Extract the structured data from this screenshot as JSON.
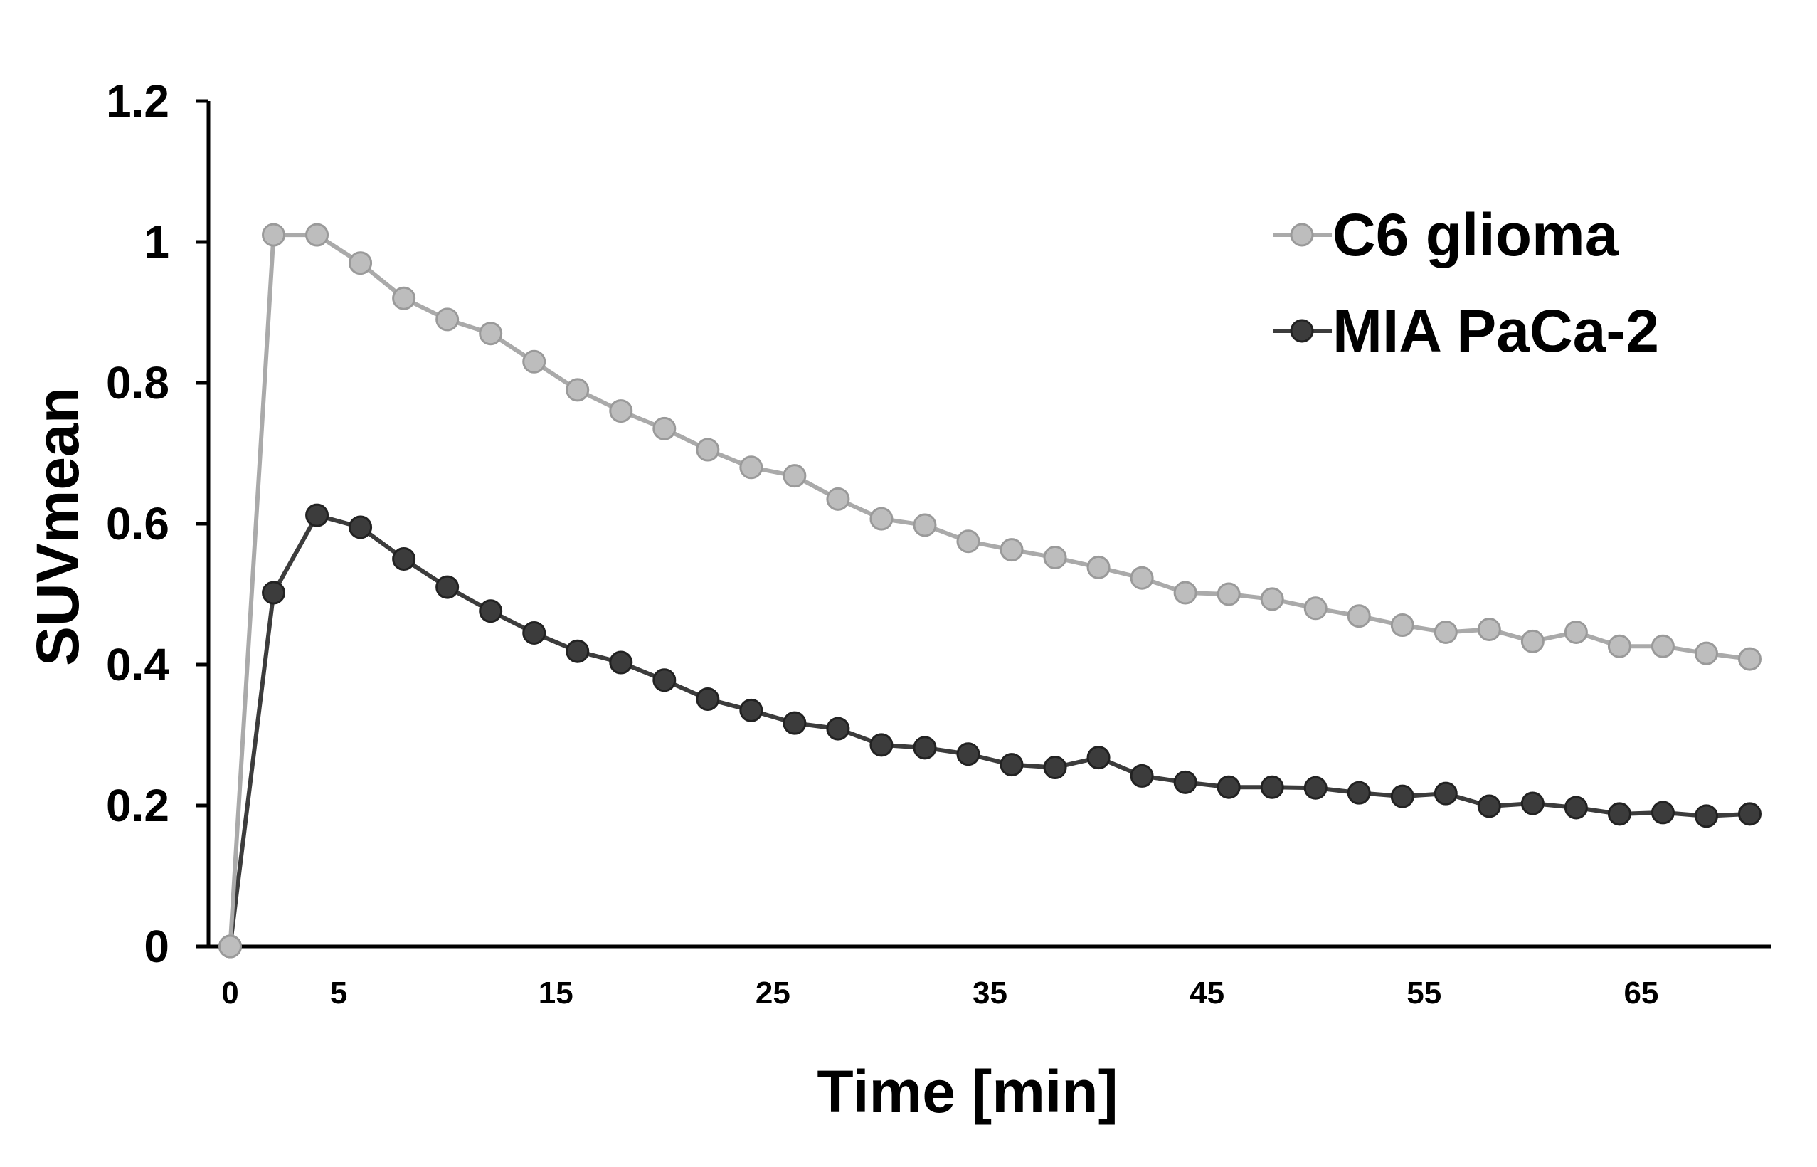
{
  "chart_data": {
    "type": "line",
    "title": "",
    "xlabel": "Time [min]",
    "ylabel": "SUVmean",
    "xlim": [
      -1,
      71
    ],
    "ylim": [
      0,
      1.2
    ],
    "xticks": [
      0,
      5,
      15,
      25,
      35,
      45,
      55,
      65
    ],
    "xtick_labels": [
      "0",
      "5",
      "15",
      "25",
      "35",
      "45",
      "55",
      "65"
    ],
    "yticks": [
      0,
      0.2,
      0.4,
      0.6,
      0.8,
      1.0,
      1.2
    ],
    "ytick_labels": [
      "0",
      "0.2",
      "0.4",
      "0.6",
      "0.8",
      "1",
      "1.2"
    ],
    "legend_position": "top-right",
    "x": [
      0,
      2,
      4,
      6,
      8,
      10,
      12,
      14,
      16,
      18,
      20,
      22,
      24,
      26,
      28,
      30,
      32,
      34,
      36,
      38,
      40,
      42,
      44,
      46,
      48,
      50,
      52,
      54,
      56,
      58,
      60,
      62,
      64,
      66,
      68,
      70
    ],
    "series": [
      {
        "name": "C6 glioma",
        "color": "#aaaaaa",
        "marker_fill": "#bdbdbd",
        "values": [
          0,
          1.01,
          1.01,
          0.97,
          0.92,
          0.89,
          0.87,
          0.83,
          0.79,
          0.76,
          0.735,
          0.705,
          0.68,
          0.668,
          0.635,
          0.607,
          0.598,
          0.575,
          0.563,
          0.552,
          0.538,
          0.523,
          0.502,
          0.5,
          0.493,
          0.48,
          0.469,
          0.456,
          0.446,
          0.45,
          0.433,
          0.446,
          0.426,
          0.426,
          0.416,
          0.408
        ]
      },
      {
        "name": "MIA PaCa-2",
        "color": "#3c3c3c",
        "marker_fill": "#3c3c3c",
        "values": [
          0,
          0.502,
          0.612,
          0.595,
          0.55,
          0.51,
          0.476,
          0.445,
          0.419,
          0.403,
          0.378,
          0.351,
          0.335,
          0.317,
          0.309,
          0.286,
          0.282,
          0.273,
          0.258,
          0.254,
          0.268,
          0.242,
          0.233,
          0.226,
          0.226,
          0.225,
          0.218,
          0.213,
          0.217,
          0.199,
          0.203,
          0.197,
          0.188,
          0.19,
          0.185,
          0.188
        ]
      }
    ]
  }
}
